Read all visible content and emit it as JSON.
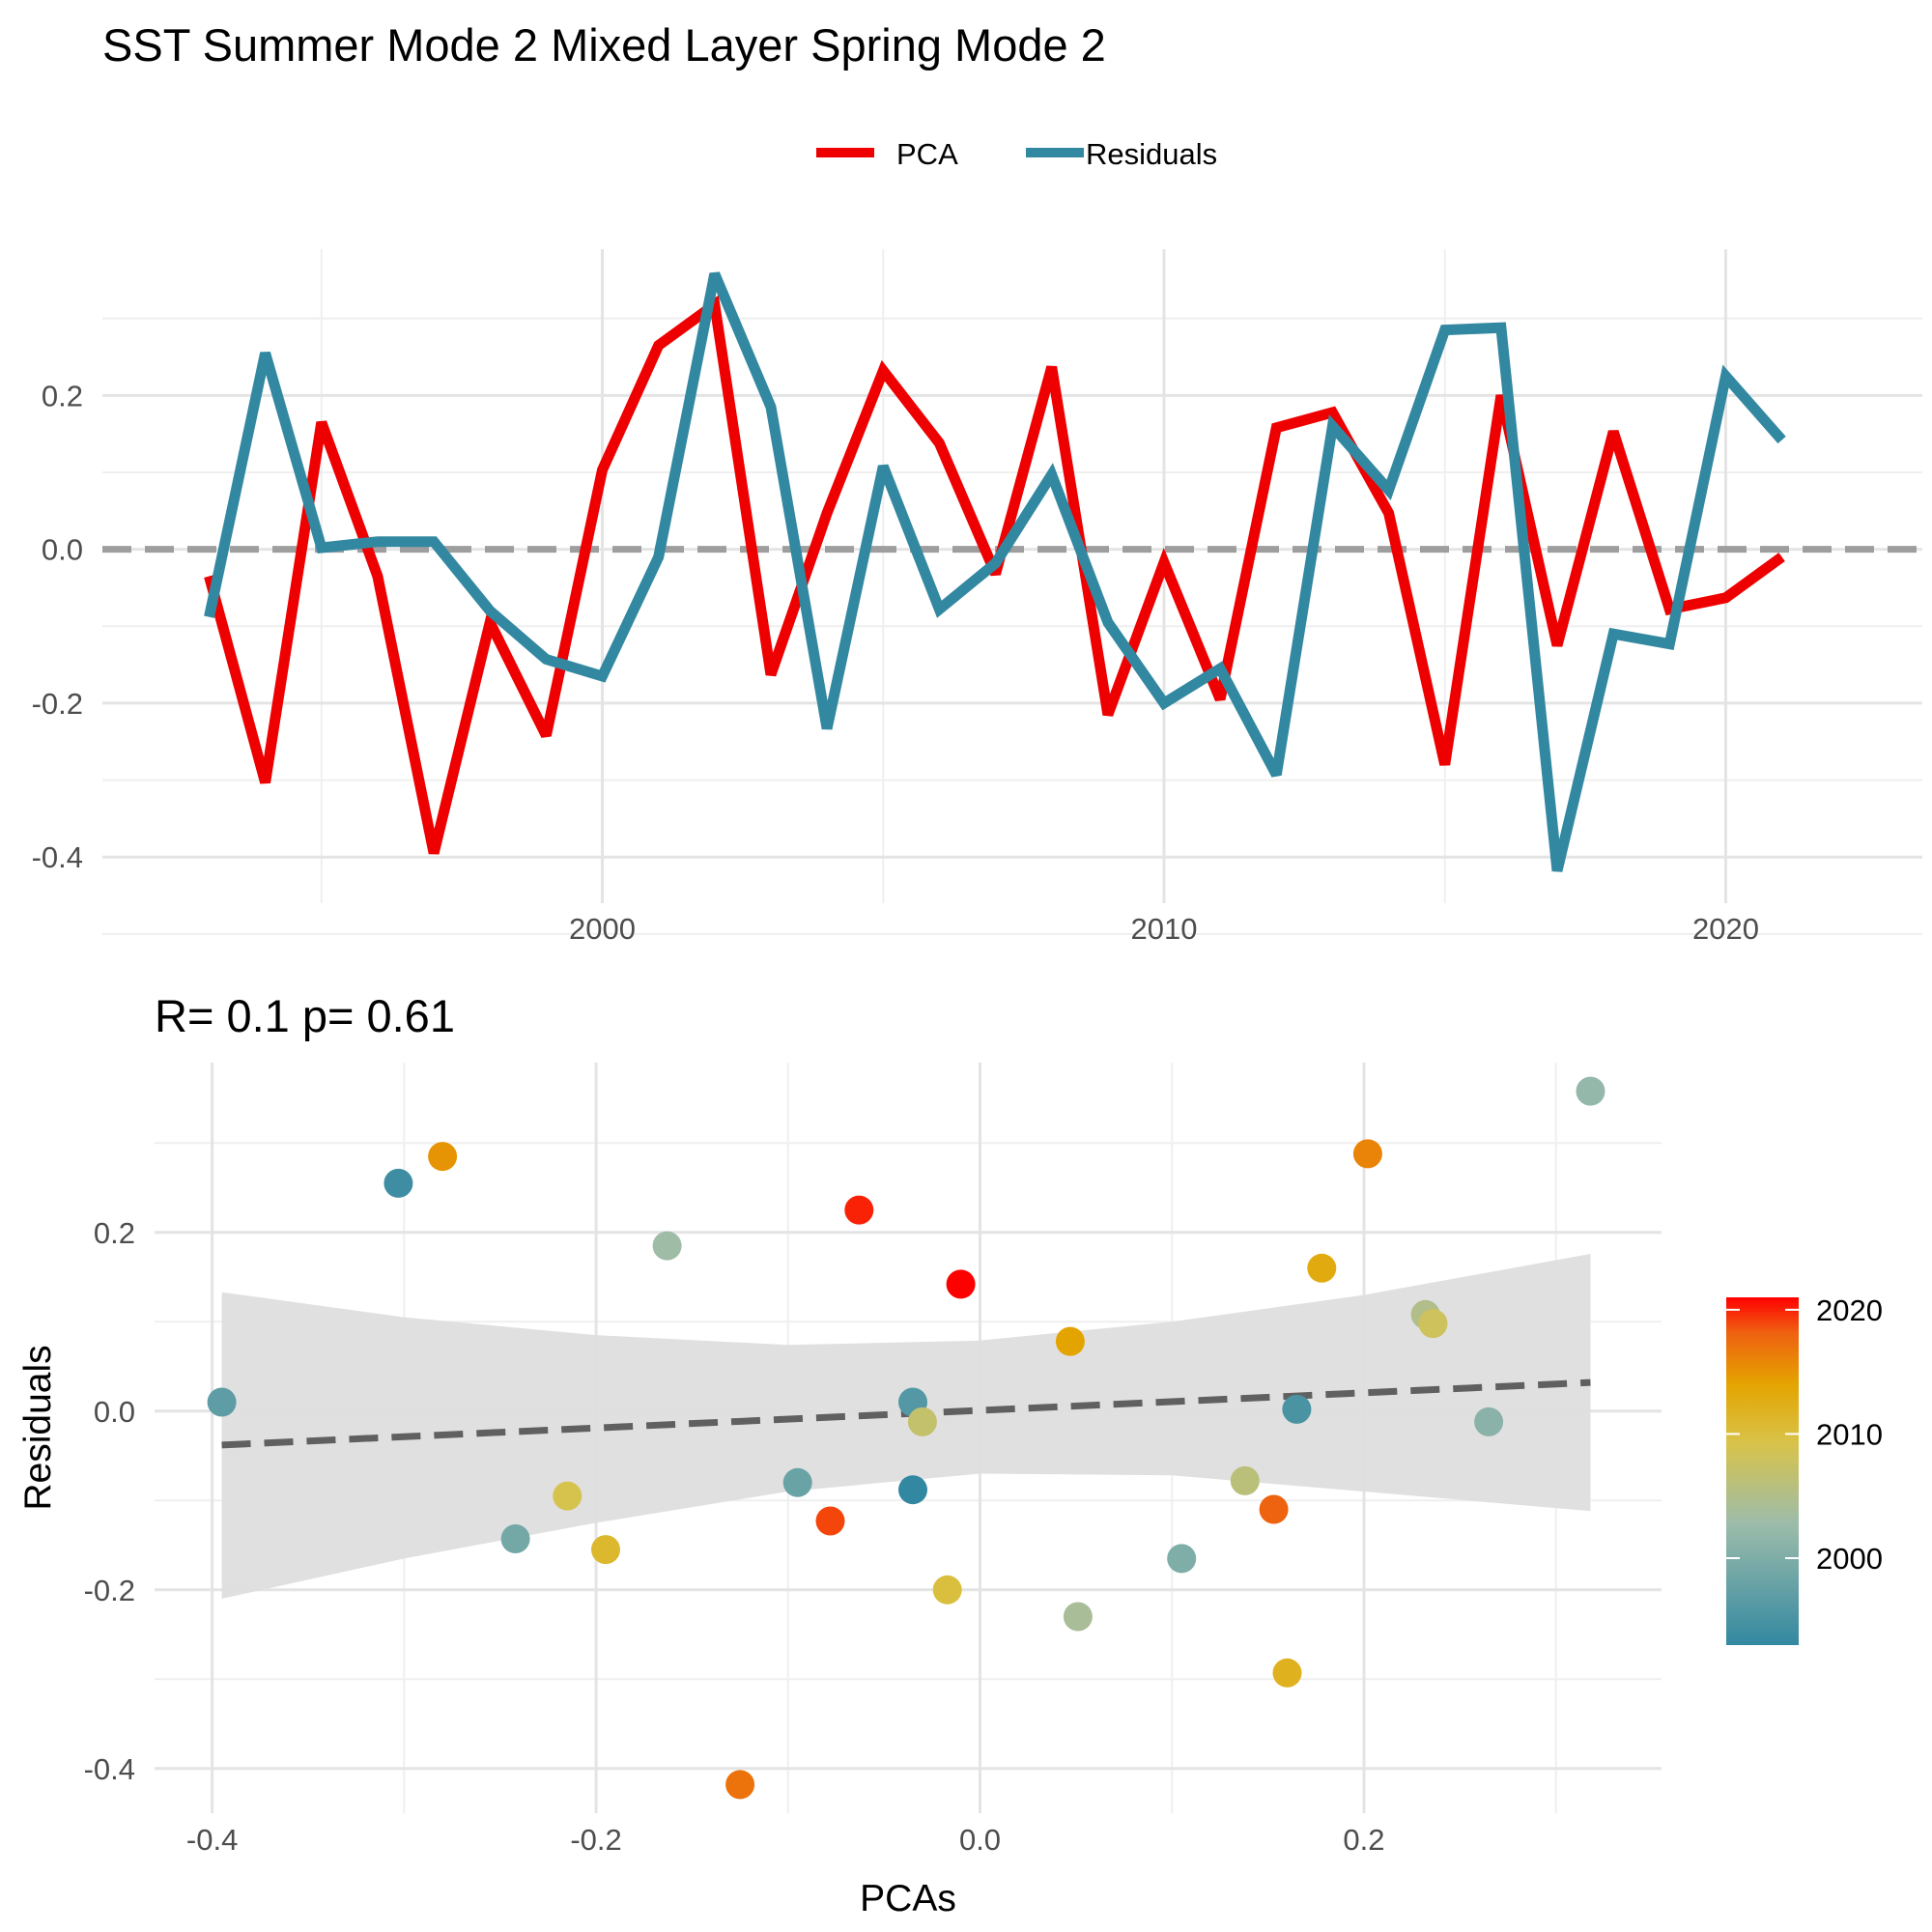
{
  "title": "SST Summer Mode 2 Mixed Layer Spring Mode 2",
  "legend": {
    "pca_label": "PCA",
    "residuals_label": "Residuals"
  },
  "colors": {
    "pca": "#ee0000",
    "residuals": "#3388a1",
    "zero_line": "#9e9e9e",
    "fit_line": "#606060",
    "ribbon": "#dedede"
  },
  "chart_data": [
    {
      "type": "line",
      "x": [
        1993,
        1994,
        1995,
        1996,
        1997,
        1998,
        1999,
        2000,
        2001,
        2002,
        2003,
        2004,
        2005,
        2006,
        2007,
        2008,
        2009,
        2010,
        2011,
        2012,
        2013,
        2014,
        2015,
        2016,
        2017,
        2018,
        2019,
        2020,
        2021
      ],
      "series": [
        {
          "name": "PCA",
          "values": [
            -0.035,
            -0.303,
            0.165,
            -0.035,
            -0.395,
            -0.095,
            -0.242,
            0.103,
            0.265,
            0.318,
            -0.163,
            0.047,
            0.232,
            0.138,
            -0.032,
            0.237,
            -0.215,
            -0.017,
            -0.195,
            0.158,
            0.178,
            0.047,
            -0.28,
            0.2,
            -0.125,
            0.153,
            -0.078,
            -0.063,
            -0.01
          ]
        },
        {
          "name": "Residuals",
          "values": [
            -0.088,
            0.255,
            0.002,
            0.01,
            0.01,
            -0.08,
            -0.143,
            -0.165,
            -0.01,
            0.358,
            0.185,
            -0.233,
            0.108,
            -0.078,
            -0.018,
            0.097,
            -0.095,
            -0.2,
            -0.155,
            -0.293,
            0.16,
            0.077,
            0.285,
            0.288,
            -0.418,
            -0.11,
            -0.123,
            0.225,
            0.142
          ]
        }
      ],
      "hline": 0,
      "xlim": [
        1991.1,
        2023.5
      ],
      "ylim": [
        -0.46,
        0.39
      ],
      "xticks": [
        2000,
        2010,
        2020
      ],
      "yticks": [
        -0.4,
        -0.2,
        0.0,
        0.2
      ],
      "ytick_labels": [
        "-0.4",
        "-0.2",
        "0.0",
        "0.2"
      ],
      "grid": true,
      "legend_position": "top"
    },
    {
      "type": "scatter",
      "title": "R= 0.1  p= 0.61",
      "xlabel": "PCAs",
      "ylabel": "Residuals",
      "points": [
        {
          "x": -0.035,
          "y": -0.088,
          "year": 1993
        },
        {
          "x": -0.303,
          "y": 0.255,
          "year": 1994
        },
        {
          "x": 0.165,
          "y": 0.002,
          "year": 1995
        },
        {
          "x": -0.035,
          "y": 0.01,
          "year": 1996
        },
        {
          "x": -0.395,
          "y": 0.01,
          "year": 1997
        },
        {
          "x": -0.095,
          "y": -0.08,
          "year": 1998
        },
        {
          "x": -0.242,
          "y": -0.143,
          "year": 1999
        },
        {
          "x": 0.105,
          "y": -0.165,
          "year": 2000
        },
        {
          "x": 0.265,
          "y": -0.012,
          "year": 2001
        },
        {
          "x": 0.318,
          "y": 0.358,
          "year": 2002
        },
        {
          "x": -0.163,
          "y": 0.185,
          "year": 2003
        },
        {
          "x": 0.051,
          "y": -0.23,
          "year": 2004
        },
        {
          "x": 0.232,
          "y": 0.108,
          "year": 2005
        },
        {
          "x": 0.138,
          "y": -0.078,
          "year": 2006
        },
        {
          "x": -0.03,
          "y": -0.012,
          "year": 2007
        },
        {
          "x": 0.236,
          "y": 0.098,
          "year": 2008
        },
        {
          "x": -0.215,
          "y": -0.095,
          "year": 2009
        },
        {
          "x": -0.017,
          "y": -0.2,
          "year": 2010
        },
        {
          "x": -0.195,
          "y": -0.155,
          "year": 2011
        },
        {
          "x": 0.16,
          "y": -0.293,
          "year": 2012
        },
        {
          "x": 0.178,
          "y": 0.16,
          "year": 2013
        },
        {
          "x": 0.047,
          "y": 0.078,
          "year": 2014
        },
        {
          "x": -0.28,
          "y": 0.285,
          "year": 2015
        },
        {
          "x": 0.202,
          "y": 0.288,
          "year": 2016
        },
        {
          "x": -0.125,
          "y": -0.418,
          "year": 2017
        },
        {
          "x": 0.153,
          "y": -0.11,
          "year": 2018
        },
        {
          "x": -0.078,
          "y": -0.123,
          "year": 2019
        },
        {
          "x": -0.063,
          "y": 0.225,
          "year": 2020
        },
        {
          "x": -0.01,
          "y": 0.142,
          "year": 2021
        }
      ],
      "fit": {
        "x": [
          -0.395,
          0.318
        ],
        "y": [
          -0.038,
          0.032
        ]
      },
      "ribbon": {
        "x": [
          -0.395,
          -0.3,
          -0.2,
          -0.1,
          0.0,
          0.1,
          0.2,
          0.318
        ],
        "upper": [
          0.133,
          0.105,
          0.085,
          0.074,
          0.079,
          0.1,
          0.13,
          0.176
        ],
        "lower": [
          -0.21,
          -0.165,
          -0.125,
          -0.09,
          -0.07,
          -0.072,
          -0.09,
          -0.112
        ]
      },
      "xlim": [
        -0.43,
        0.355
      ],
      "ylim": [
        -0.45,
        0.39
      ],
      "xticks": [
        -0.4,
        -0.2,
        0.0,
        0.2
      ],
      "xtick_labels": [
        "-0.4",
        "-0.2",
        "0.0",
        "0.2"
      ],
      "yticks": [
        -0.4,
        -0.2,
        0.0,
        0.2
      ],
      "ytick_labels": [
        "-0.4",
        "-0.2",
        "0.0",
        "0.2"
      ],
      "grid": true,
      "colorbar": {
        "ticks": [
          2000,
          2010,
          2020
        ],
        "range": [
          1993,
          2021
        ],
        "stops": [
          "#3388a1",
          "#d8c34a",
          "#e4a400",
          "#f03000"
        ],
        "position": "right"
      }
    }
  ]
}
